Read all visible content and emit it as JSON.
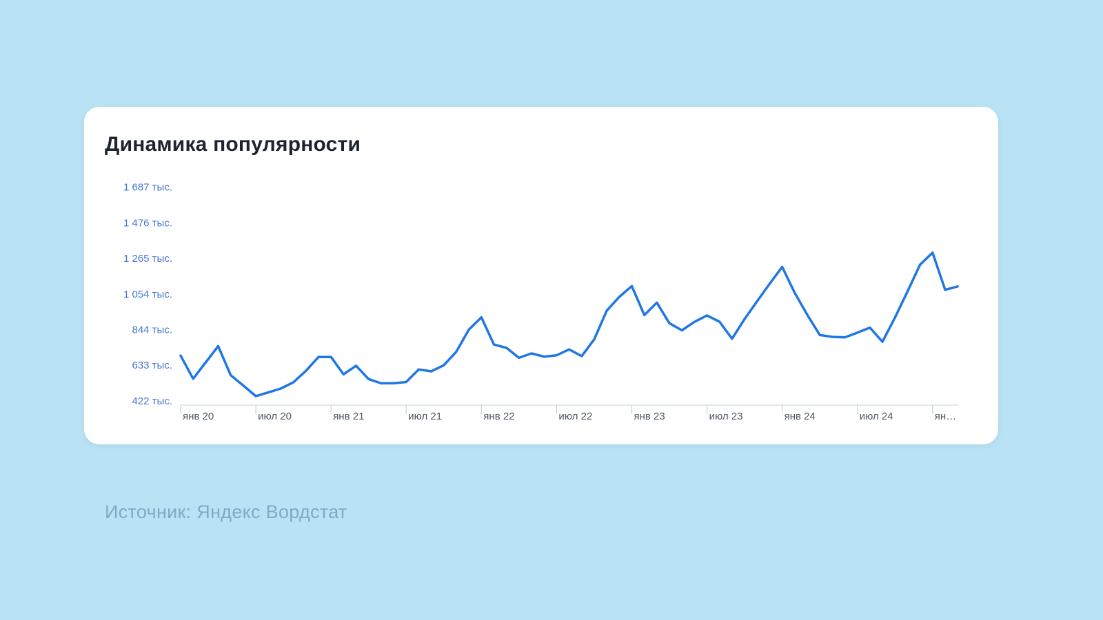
{
  "card": {
    "title": "Динамика популярности"
  },
  "source": {
    "text": "Источник: Яндекс Вордстат"
  },
  "chart_data": {
    "type": "line",
    "title": "Динамика популярности",
    "unit": "тыс.",
    "frequency": "monthly",
    "x_start": "2020-01",
    "x_end": "2025-03",
    "x_axis": {
      "tick_labels": [
        "янв 20",
        "июл 20",
        "янв 21",
        "июл 21",
        "янв 22",
        "июл 22",
        "янв 23",
        "июл 23",
        "янв 24",
        "июл 24",
        "ян…"
      ],
      "ticks_every_months": 6
    },
    "y_axis": {
      "tick_labels": [
        "1 687 тыс.",
        "1 476 тыс.",
        "1 265 тыс.",
        "1 054 тыс.",
        "844 тыс.",
        "633 тыс.",
        "422 тыс."
      ],
      "tick_values": [
        1687,
        1476,
        1265,
        1054,
        844,
        633,
        422
      ]
    },
    "ylim": [
      422,
      1740
    ],
    "grid": "off",
    "legend": "none",
    "values": [
      690,
      553,
      650,
      746,
      574,
      513,
      450,
      472,
      495,
      532,
      600,
      682,
      682,
      579,
      630,
      551,
      526,
      526,
      534,
      608,
      597,
      633,
      714,
      844,
      917,
      756,
      736,
      677,
      703,
      684,
      692,
      727,
      687,
      786,
      956,
      1038,
      1102,
      930,
      1004,
      882,
      840,
      890,
      928,
      891,
      790,
      907,
      1012,
      1116,
      1216,
      1062,
      932,
      812,
      801,
      798,
      826,
      856,
      772,
      916,
      1070,
      1229,
      1300,
      1080,
      1100
    ],
    "colors": {
      "line": "#1f76e6",
      "y_label": "#4478d2",
      "x_label": "#4d5763",
      "axis_line": "#d8dee6",
      "tick_mark": "#c6d2de",
      "background": "#b9e2f4",
      "card": "#ffffff",
      "title": "#1b2430",
      "source": "#7eaac8"
    }
  }
}
